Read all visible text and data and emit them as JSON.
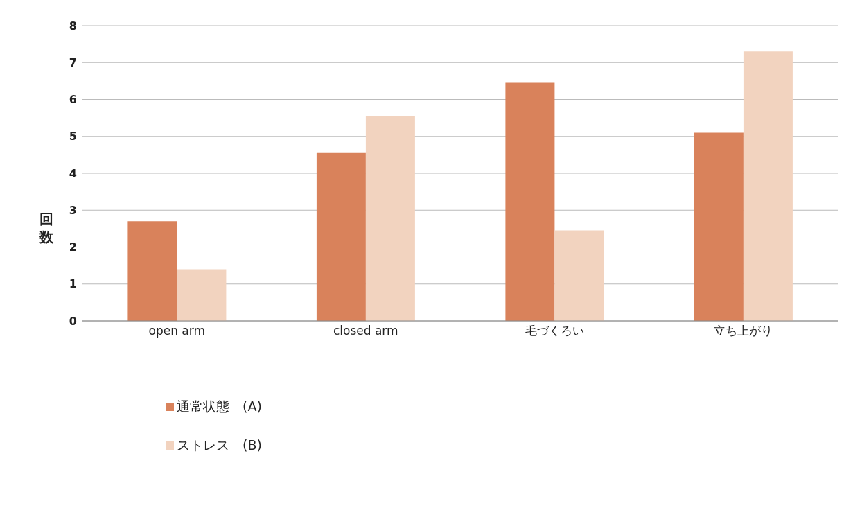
{
  "chart_data": {
    "type": "bar",
    "ylabel": "回数",
    "categories": [
      "open arm",
      "closed arm",
      "毛づくろい",
      "立ち上がり"
    ],
    "series": [
      {
        "name": "通常状態　(A)",
        "color": "#d9825b",
        "values": [
          2.7,
          4.55,
          6.45,
          5.1
        ]
      },
      {
        "name": "ストレス　(B)",
        "color": "#f2d3bf",
        "values": [
          1.4,
          5.55,
          2.45,
          7.3
        ]
      }
    ],
    "ylim": [
      0,
      8
    ],
    "yticks": [
      0,
      1,
      2,
      3,
      4,
      5,
      6,
      7,
      8
    ],
    "grid": "y",
    "legend": "bottom left"
  }
}
